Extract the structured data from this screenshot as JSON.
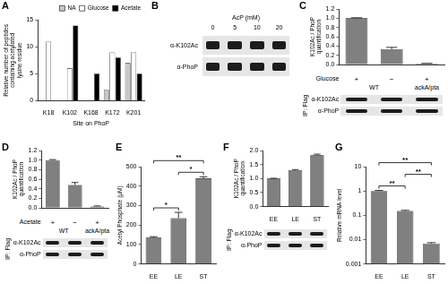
{
  "chart_data": [
    {
      "panel": "A",
      "type": "bar",
      "categories": [
        "K18",
        "K102",
        "K168",
        "K172",
        "K201"
      ],
      "series": [
        {
          "name": "NA",
          "color": "#c8c8c8",
          "values": [
            0,
            0,
            0,
            2,
            7
          ]
        },
        {
          "name": "Glucose",
          "color": "#ffffff",
          "values": [
            11,
            6,
            0,
            9,
            9
          ]
        },
        {
          "name": "Acetate",
          "color": "#000000",
          "values": [
            0,
            14,
            5,
            8,
            5
          ]
        }
      ],
      "x_label": "Site on PhoP",
      "y_label": [
        "Relative number of peptides",
        "containing acetylated",
        "lysine residue"
      ],
      "ylim": [
        0,
        15
      ],
      "yticks": [
        0,
        5,
        10,
        15
      ],
      "grid": false,
      "legend": "top-right"
    },
    {
      "panel": "C",
      "type": "bar",
      "categories": [
        null,
        null,
        null
      ],
      "values": [
        1.0,
        0.33,
        0.02
      ],
      "errors": [
        0.01,
        0.04,
        0.005
      ],
      "color": "#808080",
      "y_label": [
        "K102Ac / PhoP",
        "quantification"
      ],
      "ylim": [
        0,
        1.2
      ],
      "yticks": [
        {
          "value": 0,
          "label": "0.0"
        },
        0.2,
        0.4,
        0.6,
        0.8,
        {
          "value": 1,
          "label": "1.0"
        },
        1.2
      ],
      "grid": false,
      "tick_labels": "y",
      "blot": {
        "conditions": {
          "label": "Glucose",
          "marks": [
            "+",
            "−",
            "+"
          ]
        },
        "groups": [
          {
            "label": "WT",
            "lanes": 2
          },
          {
            "label": "ackA/pta",
            "lanes": 1
          }
        ],
        "ip": "IP: Flag",
        "rows": [
          "α-K102Ac",
          "α-PhoP"
        ]
      }
    },
    {
      "panel": "D",
      "type": "bar",
      "categories": [
        null,
        null,
        null
      ],
      "values": [
        1.0,
        0.48,
        0.03
      ],
      "errors": [
        0.01,
        0.05,
        0.01
      ],
      "color": "#808080",
      "y_label": [
        "K102Ac / PhoP",
        "quantification"
      ],
      "ylim": [
        0,
        1.2
      ],
      "yticks": [
        {
          "value": 0,
          "label": "0.0"
        },
        0.2,
        0.4,
        0.6,
        0.8,
        {
          "value": 1,
          "label": "1.0"
        },
        1.2
      ],
      "grid": false,
      "tick_labels": "y",
      "blot": {
        "conditions": {
          "label": "Acetate",
          "marks": [
            "+",
            "−",
            "+"
          ]
        },
        "groups": [
          {
            "label": "WT",
            "lanes": 2
          },
          {
            "label": "ackA/pta",
            "lanes": 1
          }
        ],
        "ip": "IP: Flag",
        "rows": [
          "α-K102Ac",
          "α-PhoP"
        ]
      }
    },
    {
      "panel": "E",
      "type": "bar",
      "categories": [
        "EE",
        "LE",
        "ST"
      ],
      "values": [
        135,
        235,
        440
      ],
      "errors": [
        5,
        30,
        8
      ],
      "color": "#808080",
      "y_label": "Acetyl Phosphate (μM)",
      "ylim": [
        0,
        500
      ],
      "yticks": [
        0,
        100,
        200,
        300,
        400,
        500
      ],
      "grid": false,
      "significance": [
        {
          "from": "EE",
          "to": "LE",
          "label": "*"
        },
        {
          "from": "LE",
          "to": "ST",
          "label": "*"
        },
        {
          "from": "EE",
          "to": "ST",
          "label": "**"
        }
      ]
    },
    {
      "panel": "F",
      "type": "bar",
      "categories": [
        "EE",
        "LE",
        "ST"
      ],
      "values": [
        1.0,
        1.3,
        1.83
      ],
      "errors": [
        0.01,
        0.02,
        0.04
      ],
      "color": "#808080",
      "y_label": [
        "K102Ac / PhoP",
        "quantification"
      ],
      "ylim": [
        0,
        2
      ],
      "yticks": [
        {
          "value": 0,
          "label": "0.0"
        },
        0.5,
        {
          "value": 1,
          "label": "1.0"
        },
        1.5,
        {
          "value": 2,
          "label": "2.0"
        }
      ],
      "grid": false,
      "blot": {
        "ip": "IP: Flag",
        "rows": [
          "α-K102Ac",
          "α-PhoP"
        ]
      }
    },
    {
      "panel": "G",
      "type": "bar",
      "categories": [
        "EE",
        "LE",
        "ST"
      ],
      "values": [
        1,
        0.15,
        0.007
      ],
      "errors": [
        0.05,
        0.01,
        0.0005
      ],
      "color": "#808080",
      "y_label": "Relative mRNA level",
      "log": "y",
      "ylim": [
        0.001,
        10
      ],
      "yticks": [
        0.001,
        0.01,
        0.1,
        1,
        10
      ],
      "grid": false,
      "significance": [
        {
          "from": "EE",
          "to": "LE",
          "label": "**"
        },
        {
          "from": "LE",
          "to": "ST",
          "label": "**"
        },
        {
          "from": "EE",
          "to": "ST",
          "label": "**"
        }
      ]
    }
  ],
  "blot_panels": [
    {
      "panel": "B",
      "header": "AcP (mM)",
      "lanes": [
        "0",
        "5",
        "10",
        "20"
      ],
      "rows": [
        "α-K102Ac",
        "α-PhoP"
      ]
    }
  ]
}
